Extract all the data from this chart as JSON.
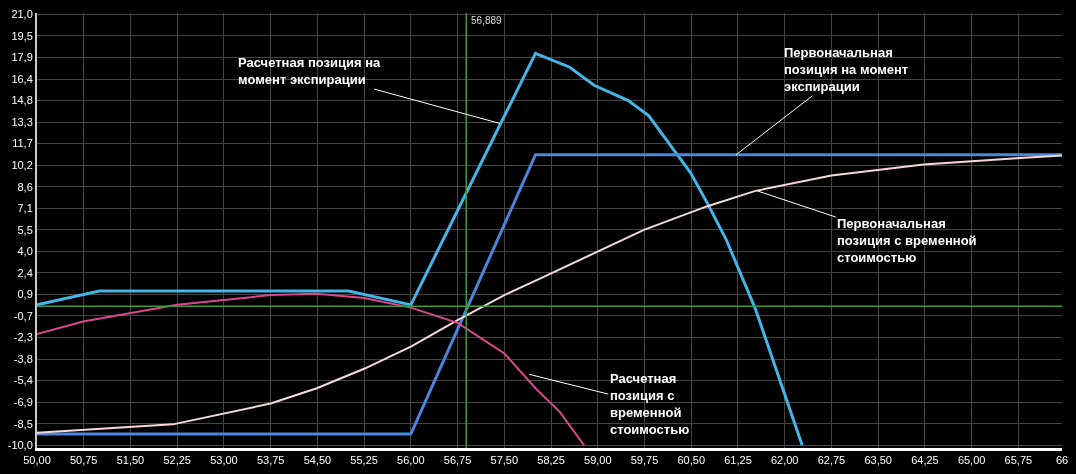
{
  "chart_data": {
    "type": "line",
    "xlim": [
      50,
      66.45
    ],
    "ylim": [
      -10.2,
      21.1
    ],
    "xticks": [
      {
        "value": 50,
        "label": "50,00"
      },
      {
        "value": 50.75,
        "label": "50,75"
      },
      {
        "value": 51.5,
        "label": "51,50"
      },
      {
        "value": 52.25,
        "label": "52,25"
      },
      {
        "value": 53,
        "label": "53,00"
      },
      {
        "value": 53.75,
        "label": "53,75"
      },
      {
        "value": 54.5,
        "label": "54,50"
      },
      {
        "value": 55.25,
        "label": "55,25"
      },
      {
        "value": 56,
        "label": "56,00"
      },
      {
        "value": 56.75,
        "label": "56,75"
      },
      {
        "value": 57.5,
        "label": "57,50"
      },
      {
        "value": 58.25,
        "label": "58,25"
      },
      {
        "value": 59,
        "label": "59,00"
      },
      {
        "value": 59.75,
        "label": "59,75"
      },
      {
        "value": 60.5,
        "label": "60,50"
      },
      {
        "value": 61.25,
        "label": "61,25"
      },
      {
        "value": 62,
        "label": "62,00"
      },
      {
        "value": 62.75,
        "label": "62,75"
      },
      {
        "value": 63.5,
        "label": "63,50"
      },
      {
        "value": 64.25,
        "label": "64,25"
      },
      {
        "value": 65,
        "label": "65,00"
      },
      {
        "value": 65.75,
        "label": "65,75"
      },
      {
        "value": 66.45,
        "label": "66"
      }
    ],
    "yticks": [
      {
        "value": -10,
        "label": "-10,0"
      },
      {
        "value": -8.45,
        "label": "-8,5"
      },
      {
        "value": -6.9,
        "label": "-6,9"
      },
      {
        "value": -5.35,
        "label": "-5,4"
      },
      {
        "value": -3.8,
        "label": "-3,8"
      },
      {
        "value": -2.25,
        "label": "-2,3"
      },
      {
        "value": -0.7,
        "label": "-0,7"
      },
      {
        "value": 0.85,
        "label": "0,9"
      },
      {
        "value": 2.4,
        "label": "2,4"
      },
      {
        "value": 3.95,
        "label": "4,0"
      },
      {
        "value": 5.5,
        "label": "5,5"
      },
      {
        "value": 7.05,
        "label": "7,1"
      },
      {
        "value": 8.6,
        "label": "8,6"
      },
      {
        "value": 10.15,
        "label": "10,2"
      },
      {
        "value": 11.7,
        "label": "11,7"
      },
      {
        "value": 13.25,
        "label": "13,3"
      },
      {
        "value": 14.8,
        "label": "14,8"
      },
      {
        "value": 16.35,
        "label": "16,4"
      },
      {
        "value": 17.9,
        "label": "17,9"
      },
      {
        "value": 19.45,
        "label": "19,5"
      },
      {
        "value": 21,
        "label": "21,0"
      }
    ],
    "grid": true,
    "marker": "none",
    "line_style": "solid",
    "series": [
      {
        "color": "#45b4e6",
        "x": [
          50,
          51.0,
          55.0,
          56.0,
          58.0,
          58.55,
          58.94,
          59.49,
          59.82,
          60.21,
          60.49,
          60.76,
          61.06,
          61.53,
          62.28
        ],
        "values": [
          0.1,
          1.1,
          1.1,
          0.1,
          18.2,
          17.2,
          15.9,
          14.8,
          13.7,
          11.3,
          9.6,
          7.4,
          4.8,
          -0.2,
          -10.0
        ]
      },
      {
        "color": "#4a86dc",
        "x": [
          50,
          56.0,
          58.0,
          66.45
        ],
        "values": [
          -9.2,
          -9.2,
          10.9,
          10.9
        ]
      },
      {
        "color": "#f5d8d8",
        "x": [
          50,
          52.18,
          53.75,
          54.49,
          55.25,
          56.0,
          56.75,
          57.5,
          58.08,
          59.74,
          60.76,
          61.53,
          62.75,
          64.23,
          65.72,
          66.45
        ],
        "values": [
          -9.1,
          -8.5,
          -7.0,
          -5.9,
          -4.5,
          -2.9,
          -1.0,
          0.8,
          2.0,
          5.5,
          7.2,
          8.3,
          9.4,
          10.2,
          10.65,
          10.85
        ]
      },
      {
        "color": "#d9488f",
        "x": [
          50,
          50.74,
          52.25,
          53.75,
          54.49,
          55.25,
          56.0,
          56.75,
          57.5,
          58.0,
          58.39,
          58.78
        ],
        "values": [
          -2.0,
          -1.1,
          0.1,
          0.8,
          0.9,
          0.6,
          -0.1,
          -1.2,
          -3.4,
          -5.9,
          -7.6,
          -10.0
        ]
      }
    ],
    "ref_lines": [
      {
        "axis": "x",
        "value": 56.889,
        "label": "56,889",
        "color": "#3c9a3c"
      },
      {
        "axis": "y",
        "value": 0,
        "color": "#3c9a3c"
      }
    ],
    "annotations": [
      {
        "text": "Расчетная позиция на\nмомент экспирации",
        "x": 57.43,
        "y": 13.15
      },
      {
        "text": "Первоначальная\nпозиция на момент\nэкспирации",
        "x": 61.22,
        "y": 10.9
      },
      {
        "text": "Первоначальная\nпозиция с временной\nстоимостью",
        "x": 61.56,
        "y": 8.3
      },
      {
        "text": "Расчетная\nпозиция с\nвременной\nстоимостью",
        "x": 57.9,
        "y": -4.9
      }
    ]
  }
}
